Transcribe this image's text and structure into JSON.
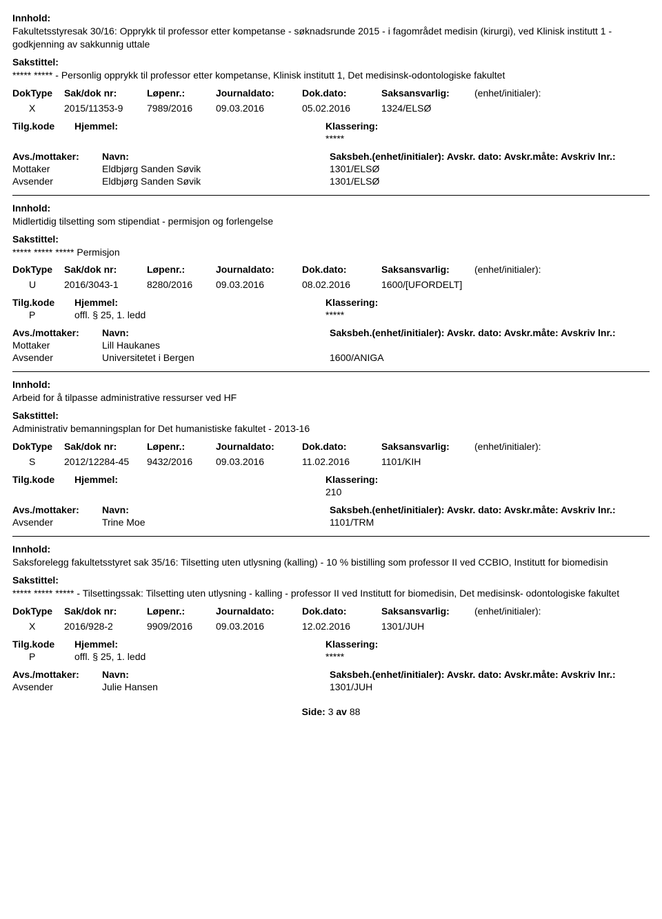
{
  "labels": {
    "innhold": "Innhold:",
    "sakstittel": "Sakstittel:",
    "doktype": "DokType",
    "sakdok": "Sak/dok nr:",
    "lopenr": "Løpenr.:",
    "journaldato": "Journaldato:",
    "dokdato": "Dok.dato:",
    "saksansvarlig": "Saksansvarlig:",
    "enhet": "(enhet/initialer):",
    "tilgkode": "Tilg.kode",
    "hjemmel": "Hjemmel:",
    "klassering": "Klassering:",
    "avsmottaker": "Avs./mottaker:",
    "navn": "Navn:",
    "saksbeh_line": "Saksbeh.(enhet/initialer): Avskr. dato: Avskr.måte: Avskriv lnr.:",
    "mottaker": "Mottaker",
    "avsender": "Avsender",
    "side": "Side:",
    "av": "av"
  },
  "entries": [
    {
      "innhold": "Fakultetsstyresak 30/16: Opprykk til professor etter kompetanse - søknadsrunde 2015 - i fagområdet medisin (kirurgi), ved Klinisk institutt 1 - godkjenning av sakkunnig uttale",
      "sakstittel": "***** ***** - Personlig opprykk til professor etter kompetanse, Klinisk institutt 1, Det medisinsk-odontologiske fakultet",
      "doktype": "X",
      "sakdok": "2015/11353-9",
      "lopenr": "7989/2016",
      "journaldato": "09.03.2016",
      "dokdato": "05.02.2016",
      "saksansvarlig": "1324/ELSØ",
      "tilgkode": "",
      "hjemmel": "",
      "klassering": "*****",
      "parties": [
        {
          "role": "Mottaker",
          "name": "Eldbjørg Sanden Søvik",
          "saksbeh": "1301/ELSØ"
        },
        {
          "role": "Avsender",
          "name": "Eldbjørg Sanden Søvik",
          "saksbeh": "1301/ELSØ"
        }
      ]
    },
    {
      "innhold": "Midlertidig tilsetting som stipendiat - permisjon og forlengelse",
      "sakstittel": "***** ***** ***** Permisjon",
      "doktype": "U",
      "sakdok": "2016/3043-1",
      "lopenr": "8280/2016",
      "journaldato": "09.03.2016",
      "dokdato": "08.02.2016",
      "saksansvarlig": "1600/[UFORDELT]",
      "tilgkode": "P",
      "hjemmel": "offl. § 25, 1. ledd",
      "klassering": "*****",
      "parties": [
        {
          "role": "Mottaker",
          "name": "Lill Haukanes",
          "saksbeh": ""
        },
        {
          "role": "Avsender",
          "name": "Universitetet i Bergen",
          "saksbeh": "1600/ANIGA"
        }
      ]
    },
    {
      "innhold": "Arbeid for å tilpasse administrative ressurser ved HF",
      "sakstittel": "Administrativ bemanningsplan for Det humanistiske fakultet - 2013-16",
      "doktype": "S",
      "sakdok": "2012/12284-45",
      "lopenr": "9432/2016",
      "journaldato": "09.03.2016",
      "dokdato": "11.02.2016",
      "saksansvarlig": "1101/KIH",
      "tilgkode": "",
      "hjemmel": "",
      "klassering": "210",
      "parties": [
        {
          "role": "Avsender",
          "name": "Trine Moe",
          "saksbeh": "1101/TRM"
        }
      ]
    },
    {
      "innhold": "Saksforelegg fakultetsstyret sak 35/16: Tilsetting uten utlysning (kalling) - 10 % bistilling som professor II ved CCBIO, Institutt for biomedisin",
      "sakstittel": "***** ***** ***** - Tilsettingssak: Tilsetting uten utlysning - kalling - professor II ved Institutt for biomedisin, Det medisinsk- odontologiske fakultet",
      "doktype": "X",
      "sakdok": "2016/928-2",
      "lopenr": "9909/2016",
      "journaldato": "09.03.2016",
      "dokdato": "12.02.2016",
      "saksansvarlig": "1301/JUH",
      "tilgkode": "P",
      "hjemmel": "offl. § 25, 1. ledd",
      "klassering": "*****",
      "parties": [
        {
          "role": "Avsender",
          "name": "Julie Hansen",
          "saksbeh": "1301/JUH"
        }
      ]
    }
  ],
  "footer": {
    "page": "3",
    "total": "88"
  }
}
